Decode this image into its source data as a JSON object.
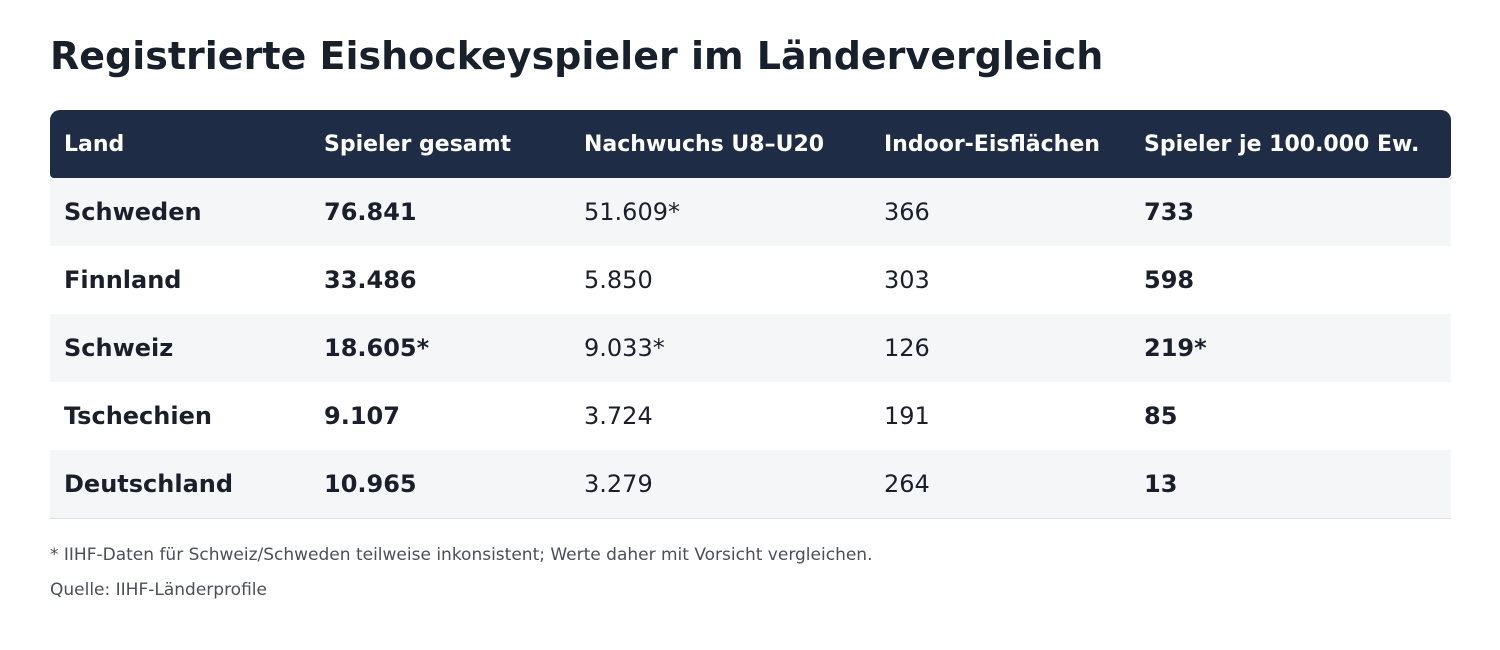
{
  "title": "Registrierte Eishockeyspieler im Ländervergleich",
  "table": {
    "headers": [
      "Land",
      "Spieler gesamt",
      "Nachwuchs U8–U20",
      "Indoor-Eisflächen",
      "Spieler je 100.000 Ew."
    ],
    "rows": [
      [
        "Schweden",
        "76.841",
        "51.609*",
        "366",
        "733"
      ],
      [
        "Finnland",
        "33.486",
        "5.850",
        "303",
        "598"
      ],
      [
        "Schweiz",
        "18.605*",
        "9.033*",
        "126",
        "219*"
      ],
      [
        "Tschechien",
        "9.107",
        "3.724",
        "191",
        "85"
      ],
      [
        "Deutschland",
        "10.965",
        "3.279",
        "264",
        "13"
      ]
    ]
  },
  "footnote": "* IIHF-Daten für Schweiz/Schweden teilweise inkonsistent; Werte daher mit Vorsicht vergleichen.",
  "source": "Quelle: IIHF-Länderprofile",
  "colors": {
    "header_bg": "#1e2d45",
    "stripe_bg": "#f4f6f8",
    "text": "#1a1f2b"
  }
}
